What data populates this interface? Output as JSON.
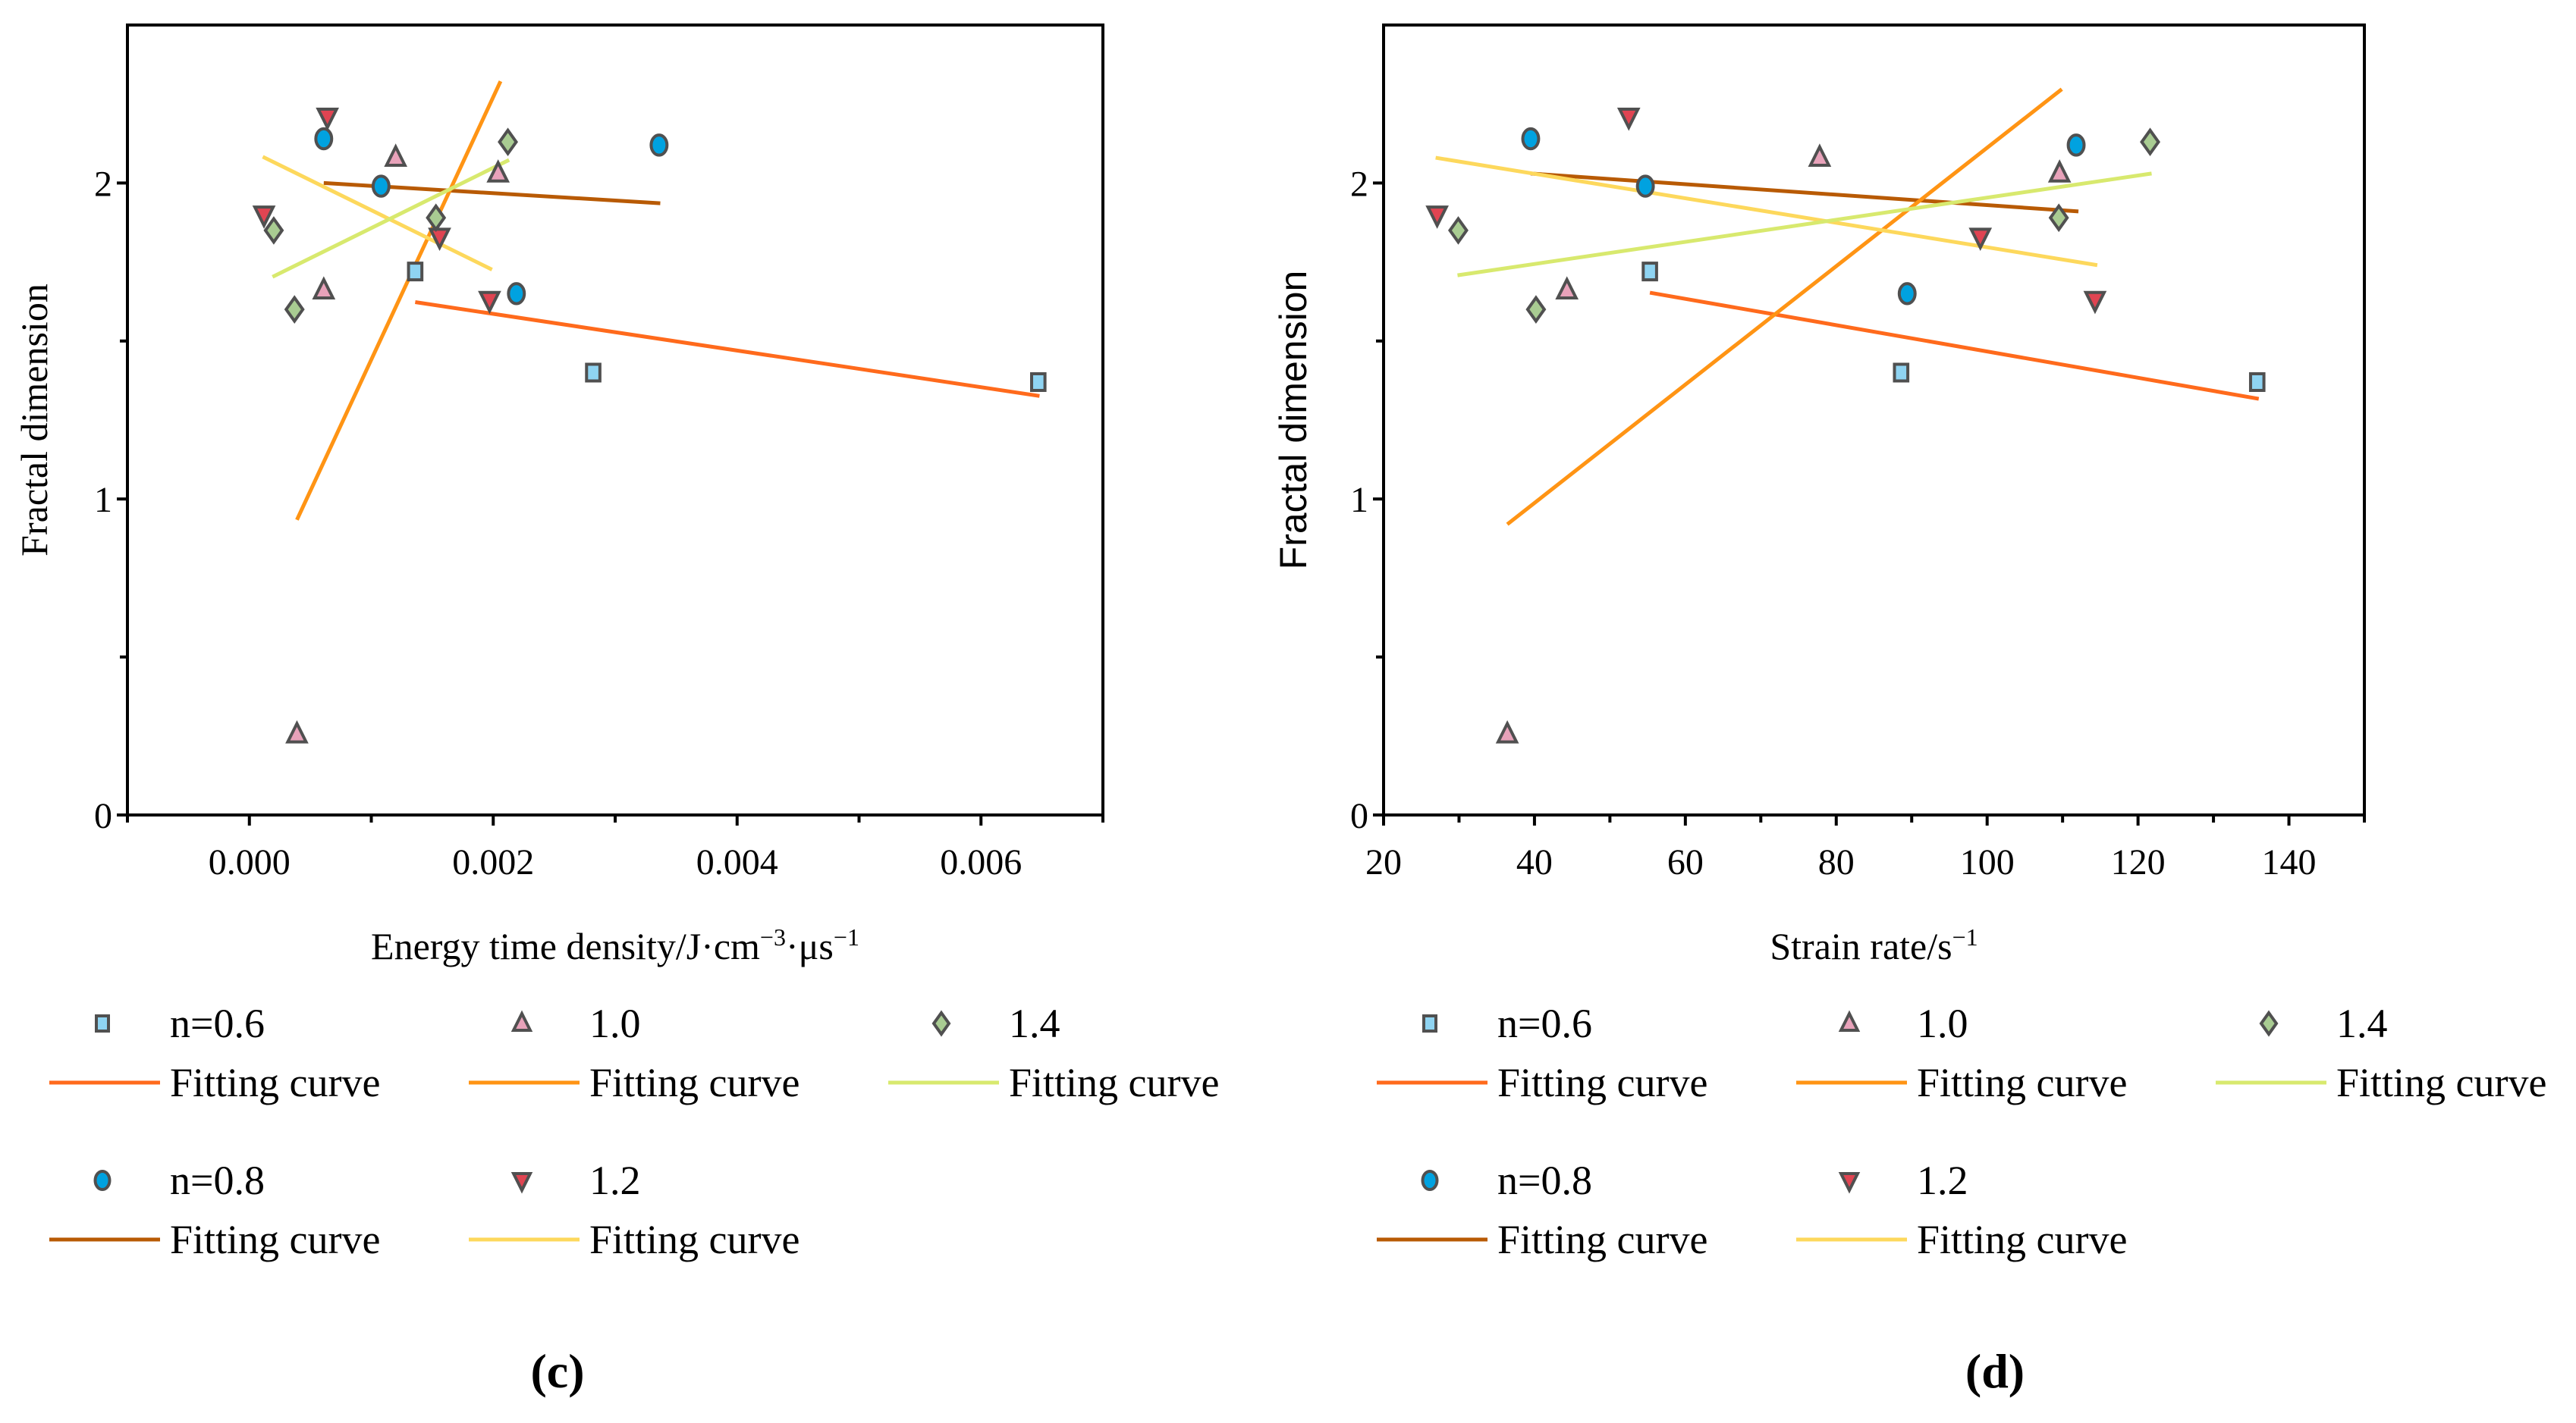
{
  "chart_data": [
    {
      "type": "scatter",
      "panel": "(c)",
      "xlabel": [
        "Energy time density/J·cm",
        "−3",
        "·μs",
        "−1"
      ],
      "ylabel": "Fractal dimension",
      "xlim": [
        -0.001,
        0.007
      ],
      "ylim": [
        0,
        2.5
      ],
      "xticks": [
        0.0,
        0.002,
        0.004,
        0.006
      ],
      "xtick_labels": [
        "0.000",
        "0.002",
        "0.004",
        "0.006"
      ],
      "xminor_step": 0.001,
      "yticks": [
        0,
        1,
        2
      ],
      "ytick_labels": [
        "0",
        "1",
        "2"
      ],
      "yminor_step": 0.5,
      "series": [
        {
          "name": "n=0.6",
          "marker": "square",
          "color": "#8fd4f2",
          "points": [
            [
              0.00136,
              1.72
            ],
            [
              0.00282,
              1.4
            ],
            [
              0.00647,
              1.37
            ]
          ],
          "fit": {
            "label": "Fitting curve",
            "color": "#ff6a1c",
            "x": [
              0.00136,
              0.00648
            ],
            "y": [
              1.623,
              1.326
            ]
          }
        },
        {
          "name": "n=0.8",
          "marker": "circle",
          "color": "#00a2e0",
          "points": [
            [
              0.00061,
              2.14
            ],
            [
              0.00108,
              1.99
            ],
            [
              0.00219,
              1.65
            ],
            [
              0.00336,
              2.12
            ]
          ],
          "fit": {
            "label": "Fitting curve",
            "color": "#b85a04",
            "x": [
              0.00061,
              0.00337
            ],
            "y": [
              2.0,
              1.936
            ]
          }
        },
        {
          "name": "1.0",
          "marker": "triangle-up",
          "color": "#e8a2ba",
          "points": [
            [
              0.0012,
              2.08
            ],
            [
              0.00204,
              2.03
            ],
            [
              0.00061,
              1.66
            ],
            [
              0.00039,
              0.255
            ]
          ],
          "fit": {
            "label": "Fitting curve",
            "color": "#ff9414",
            "x": [
              0.00039,
              0.00206
            ],
            "y": [
              0.934,
              2.322
            ]
          }
        },
        {
          "name": "1.2",
          "marker": "triangle-down",
          "color": "#e04452",
          "points": [
            [
              0.00064,
              2.21
            ],
            [
              0.00012,
              1.9
            ],
            [
              0.00156,
              1.83
            ],
            [
              0.00197,
              1.63
            ]
          ],
          "fit": {
            "label": "Fitting curve",
            "color": "#fdd85c",
            "x": [
              0.00011,
              0.00199
            ],
            "y": [
              2.083,
              1.726
            ]
          }
        },
        {
          "name": "1.4",
          "marker": "diamond",
          "color": "#a9cc92",
          "points": [
            [
              0.00212,
              2.13
            ],
            [
              0.0002,
              1.85
            ],
            [
              0.00153,
              1.89
            ],
            [
              0.00037,
              1.6
            ]
          ],
          "fit": {
            "label": "Fitting curve",
            "color": "#d8e96e",
            "x": [
              0.00019,
              0.00213
            ],
            "y": [
              1.703,
              2.073
            ]
          }
        }
      ]
    },
    {
      "type": "scatter",
      "panel": "(d)",
      "xlabel": [
        "Strain rate/s",
        "−1",
        "",
        ""
      ],
      "ylabel": "Fractal dimension",
      "xlim": [
        20,
        150
      ],
      "ylim": [
        0,
        2.5
      ],
      "xticks": [
        20,
        40,
        60,
        80,
        100,
        120,
        140
      ],
      "xtick_labels": [
        "20",
        "40",
        "60",
        "80",
        "100",
        "120",
        "140"
      ],
      "xminor_step": 10,
      "yticks": [
        0,
        1,
        2
      ],
      "ytick_labels": [
        "0",
        "1",
        "2"
      ],
      "yminor_step": 0.5,
      "series": [
        {
          "name": "n=0.6",
          "marker": "square",
          "color": "#8fd4f2",
          "points": [
            [
              55.3,
              1.72
            ],
            [
              88.6,
              1.4
            ],
            [
              135.8,
              1.37
            ]
          ],
          "fit": {
            "label": "Fitting curve",
            "color": "#ff6a1c",
            "x": [
              55.3,
              136.0
            ],
            "y": [
              1.653,
              1.317
            ]
          }
        },
        {
          "name": "n=0.8",
          "marker": "circle",
          "color": "#00a2e0",
          "points": [
            [
              39.5,
              2.14
            ],
            [
              54.7,
              1.99
            ],
            [
              89.4,
              1.65
            ],
            [
              111.8,
              2.12
            ]
          ],
          "fit": {
            "label": "Fitting curve",
            "color": "#b85a04",
            "x": [
              39.5,
              112.1
            ],
            "y": [
              2.03,
              1.91
            ]
          }
        },
        {
          "name": "1.0",
          "marker": "triangle-up",
          "color": "#e8a2ba",
          "points": [
            [
              77.8,
              2.08
            ],
            [
              109.6,
              2.03
            ],
            [
              44.3,
              1.66
            ],
            [
              36.4,
              0.255
            ]
          ],
          "fit": {
            "label": "Fitting curve",
            "color": "#ff9414",
            "x": [
              36.4,
              109.9
            ],
            "y": [
              0.92,
              2.297
            ]
          }
        },
        {
          "name": "1.2",
          "marker": "triangle-down",
          "color": "#e04452",
          "points": [
            [
              52.5,
              2.21
            ],
            [
              27.1,
              1.9
            ],
            [
              99.1,
              1.83
            ],
            [
              114.3,
              1.63
            ]
          ],
          "fit": {
            "label": "Fitting curve",
            "color": "#fdd85c",
            "x": [
              26.9,
              114.6
            ],
            "y": [
              2.08,
              1.74
            ]
          }
        },
        {
          "name": "1.4",
          "marker": "diamond",
          "color": "#a9cc92",
          "points": [
            [
              121.6,
              2.13
            ],
            [
              29.9,
              1.85
            ],
            [
              109.5,
              1.89
            ],
            [
              40.2,
              1.6
            ]
          ],
          "fit": {
            "label": "Fitting curve",
            "color": "#d8e96e",
            "x": [
              29.8,
              121.8
            ],
            "y": [
              1.708,
              2.03
            ]
          }
        }
      ]
    }
  ]
}
